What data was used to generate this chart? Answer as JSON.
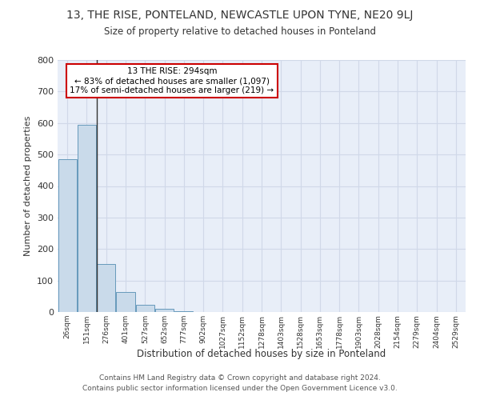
{
  "title": "13, THE RISE, PONTELAND, NEWCASTLE UPON TYNE, NE20 9LJ",
  "subtitle": "Size of property relative to detached houses in Ponteland",
  "xlabel": "Distribution of detached houses by size in Ponteland",
  "ylabel": "Number of detached properties",
  "bar_labels": [
    "26sqm",
    "151sqm",
    "276sqm",
    "401sqm",
    "527sqm",
    "652sqm",
    "777sqm",
    "902sqm",
    "1027sqm",
    "1152sqm",
    "1278sqm",
    "1403sqm",
    "1528sqm",
    "1653sqm",
    "1778sqm",
    "1903sqm",
    "2028sqm",
    "2154sqm",
    "2279sqm",
    "2404sqm",
    "2529sqm"
  ],
  "bar_heights": [
    485,
    595,
    152,
    63,
    22,
    10,
    2,
    0,
    0,
    0,
    0,
    0,
    0,
    0,
    0,
    0,
    0,
    0,
    0,
    0,
    0
  ],
  "bar_color": "#c9daea",
  "bar_edgecolor": "#6699bb",
  "vline_index": 2,
  "annotation_text_line1": "13 THE RISE: 294sqm",
  "annotation_text_line2": "← 83% of detached houses are smaller (1,097)",
  "annotation_text_line3": "17% of semi-detached houses are larger (219) →",
  "annotation_box_color": "#ffffff",
  "annotation_box_edgecolor": "#cc0000",
  "vline_color": "#333333",
  "grid_color": "#d0d8e8",
  "bg_color": "#e8eef8",
  "ylim": [
    0,
    800
  ],
  "yticks": [
    0,
    100,
    200,
    300,
    400,
    500,
    600,
    700,
    800
  ],
  "footer_line1": "Contains HM Land Registry data © Crown copyright and database right 2024.",
  "footer_line2": "Contains public sector information licensed under the Open Government Licence v3.0."
}
